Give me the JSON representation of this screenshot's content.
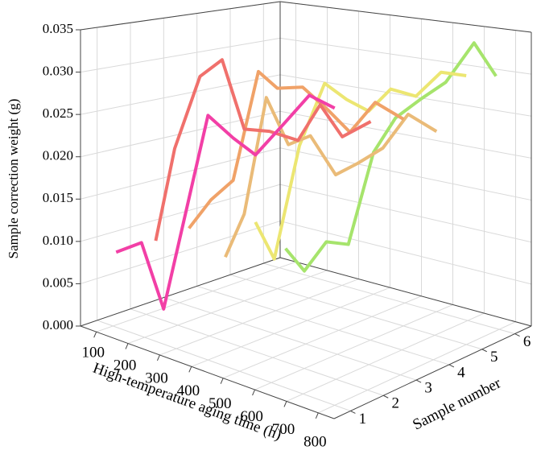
{
  "chart_data": {
    "type": "line3d",
    "xlabel": "High-temperature aging time (h)",
    "ylabel": "Sample correction weight (g)",
    "zlabel": "Sample number",
    "xlim": [
      50,
      850
    ],
    "xticks": [
      100,
      200,
      300,
      400,
      500,
      600,
      700,
      800
    ],
    "ylim": [
      0,
      0.035
    ],
    "yticks": [
      {
        "value": 0,
        "label": "0.000"
      },
      0.005,
      {
        "value": 0.01,
        "label": "0.010"
      },
      0.015,
      {
        "value": 0.02,
        "label": "0.020"
      },
      0.025,
      {
        "value": 0.03,
        "label": "0.030"
      },
      0.035
    ],
    "zlim": [
      0.5,
      6.5
    ],
    "zticks": [
      1,
      2,
      3,
      4,
      5,
      6
    ],
    "grid": true,
    "series": [
      {
        "z": 1,
        "color": "#f23fa6",
        "x": [
          110,
          190,
          260,
          400,
          480,
          550,
          640,
          720,
          800
        ],
        "values": [
          0.0089,
          0.011,
          0.0041,
          0.0281,
          0.0263,
          0.0251,
          0.0295,
          0.0334,
          0.0327
        ]
      },
      {
        "z": 2,
        "color": "#f0706c",
        "x": [
          130,
          190,
          270,
          340,
          410,
          490,
          580,
          650,
          720,
          810
        ],
        "values": [
          0.0093,
          0.0211,
          0.0305,
          0.0331,
          0.0256,
          0.0261,
          0.0259,
          0.0306,
          0.0276,
          0.0301
        ]
      },
      {
        "z": 3,
        "color": "#f0a268",
        "x": [
          130,
          200,
          270,
          350,
          410,
          490,
          570,
          640,
          720,
          810
        ],
        "values": [
          0.0096,
          0.0139,
          0.017,
          0.0309,
          0.0294,
          0.0302,
          0.0282,
          0.0262,
          0.0303,
          0.0291
        ]
      },
      {
        "z": 4,
        "color": "#eabb78",
        "x": [
          140,
          200,
          270,
          340,
          410,
          490,
          560,
          640,
          720,
          810
        ],
        "values": [
          0.0048,
          0.0109,
          0.0261,
          0.0209,
          0.0226,
          0.0186,
          0.0206,
          0.0231,
          0.0277,
          0.0264
        ]
      },
      {
        "z": 5,
        "color": "#ece672",
        "x": [
          130,
          190,
          270,
          350,
          420,
          490,
          560,
          640,
          720,
          800
        ],
        "values": [
          0.0078,
          0.0037,
          0.019,
          0.0275,
          0.026,
          0.0251,
          0.0283,
          0.028,
          0.0314,
          0.0315
        ]
      },
      {
        "z": 6,
        "color": "#a6e46c",
        "x": [
          120,
          180,
          250,
          320,
          400,
          470,
          550,
          630,
          720,
          790
        ],
        "values": [
          0.0028,
          0.0005,
          0.0051,
          0.0055,
          0.018,
          0.0229,
          0.0258,
          0.0284,
          0.0337,
          0.0301
        ]
      }
    ]
  }
}
